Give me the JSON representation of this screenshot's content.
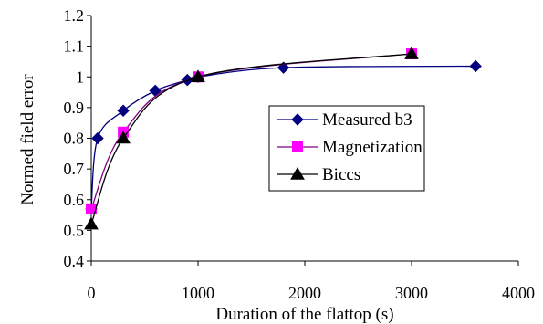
{
  "chart_data": {
    "type": "line",
    "xlabel": "Duration of the flattop (s)",
    "ylabel": "Normed field error",
    "xlim": [
      0,
      4000
    ],
    "ylim": [
      0.4,
      1.2
    ],
    "x_ticks": [
      "0",
      "1000",
      "2000",
      "3000",
      "4000"
    ],
    "y_ticks": [
      "0.4",
      "0.5",
      "0.6",
      "0.7",
      "0.8",
      "0.9",
      "1",
      "1.1",
      "1.2"
    ],
    "grid": false,
    "legend_position": "center-right",
    "series": [
      {
        "name": "Measured b3",
        "marker": "diamond",
        "color": "#000080",
        "marker_color": "#000080",
        "x": [
          0,
          60,
          300,
          600,
          900,
          1000,
          1800,
          3600
        ],
        "y": [
          0.57,
          0.8,
          0.89,
          0.955,
          0.99,
          1.0,
          1.03,
          1.035
        ]
      },
      {
        "name": "Magnetization",
        "marker": "square",
        "color": "#800080",
        "marker_color": "#ff00ff",
        "x": [
          0,
          300,
          1000,
          3000
        ],
        "y": [
          0.57,
          0.82,
          1.0,
          1.075
        ]
      },
      {
        "name": "Biccs",
        "marker": "triangle",
        "color": "#000000",
        "marker_color": "#000000",
        "x": [
          0,
          300,
          1000,
          3000
        ],
        "y": [
          0.52,
          0.8,
          1.0,
          1.075
        ]
      }
    ]
  }
}
